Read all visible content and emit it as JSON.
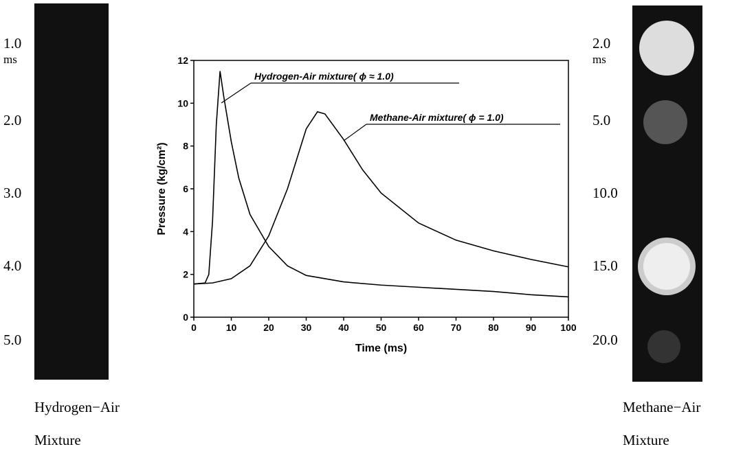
{
  "chart_data": {
    "type": "line",
    "xlabel": "Time (ms)",
    "ylabel": "Pressure (kg/cm²)",
    "xlim": [
      0,
      100
    ],
    "xticks": [
      0,
      10,
      20,
      30,
      40,
      50,
      60,
      70,
      80,
      90,
      100
    ],
    "ylim": [
      0,
      12
    ],
    "yticks": [
      0,
      2,
      4,
      6,
      8,
      10,
      12
    ],
    "series": [
      {
        "name": "Hydrogen-Air mixture( ϕ ≈ 1.0)",
        "color": "#000000",
        "x": [
          0,
          3,
          4,
          5,
          6,
          7,
          8,
          10,
          12,
          15,
          20,
          25,
          30,
          40,
          50,
          60,
          70,
          80,
          90,
          100
        ],
        "values": [
          1.55,
          1.6,
          2.0,
          4.5,
          9,
          11.5,
          10.3,
          8.2,
          6.5,
          4.8,
          3.3,
          2.4,
          1.95,
          1.65,
          1.5,
          1.4,
          1.3,
          1.2,
          1.05,
          0.95
        ]
      },
      {
        "name": "Methane-Air mixture( ϕ = 1.0)",
        "color": "#000000",
        "x": [
          0,
          5,
          10,
          15,
          20,
          25,
          30,
          33,
          35,
          40,
          45,
          50,
          60,
          70,
          80,
          90,
          100
        ],
        "values": [
          1.55,
          1.6,
          1.8,
          2.4,
          3.8,
          6.0,
          8.8,
          9.6,
          9.5,
          8.3,
          6.9,
          5.8,
          4.4,
          3.6,
          3.1,
          2.7,
          2.35
        ]
      }
    ]
  },
  "left_panel": {
    "labels": [
      "1.0",
      "2.0",
      "3.0",
      "4.0",
      "5.0"
    ],
    "unit": "ms",
    "caption": [
      "Hydrogen−Air",
      "Mixture"
    ]
  },
  "right_panel": {
    "labels": [
      "2.0",
      "5.0",
      "10.0",
      "15.0",
      "20.0"
    ],
    "unit": "ms",
    "caption": [
      "Methane−Air",
      "Mixture"
    ]
  }
}
